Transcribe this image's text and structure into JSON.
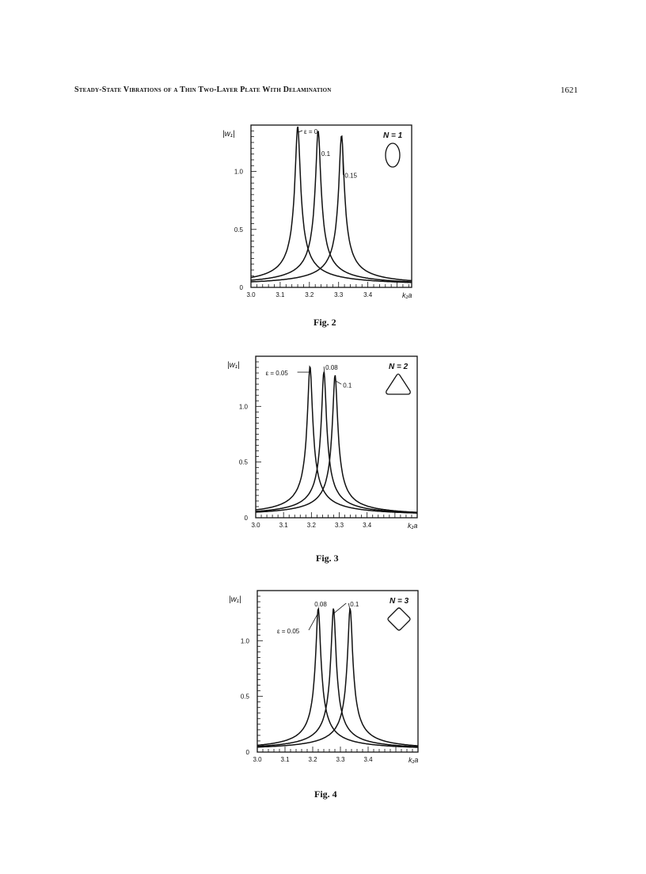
{
  "header": {
    "running_title": "Steady-State Vibrations of a Thin Two-Layer Plate With Delamination",
    "page_number": "1621"
  },
  "chart_data": [
    {
      "type": "line",
      "caption": "Fig. 2",
      "ylabel": "|w₁|",
      "xlabel": "k₁a",
      "xlim": [
        3.0,
        3.55
      ],
      "ylim": [
        0,
        1.4
      ],
      "x_ticks": [
        "3.0",
        "3.1",
        "3.2",
        "3.3",
        "3.4"
      ],
      "y_ticks": [
        "0",
        "0.5",
        "1.0"
      ],
      "corner_label": "N = 1",
      "shape_icon": "ellipse",
      "series": [
        {
          "name": "ε = 0",
          "peak_x": 3.16,
          "peak_y": 1.38,
          "width": 0.0085
        },
        {
          "name": "0.1",
          "peak_x": 3.23,
          "peak_y": 1.34,
          "width": 0.0085
        },
        {
          "name": "0.15",
          "peak_x": 3.31,
          "peak_y": 1.3,
          "width": 0.0085
        }
      ]
    },
    {
      "type": "line",
      "caption": "Fig. 3",
      "ylabel": "|w₁|",
      "xlabel": "k₁a",
      "xlim": [
        3.0,
        3.58
      ],
      "ylim": [
        0,
        1.45
      ],
      "x_ticks": [
        "3.0",
        "3.1",
        "3.2",
        "3.3",
        "3.4"
      ],
      "y_ticks": [
        "0",
        "0.5",
        "1.0"
      ],
      "corner_label": "N = 2",
      "shape_icon": "rounded-triangle",
      "series": [
        {
          "name": "ε = 0.05",
          "peak_x": 3.195,
          "peak_y": 1.35,
          "width": 0.0085
        },
        {
          "name": "0.08",
          "peak_x": 3.245,
          "peak_y": 1.3,
          "width": 0.0085
        },
        {
          "name": "0.1",
          "peak_x": 3.285,
          "peak_y": 1.27,
          "width": 0.0085
        }
      ]
    },
    {
      "type": "line",
      "caption": "Fig. 4",
      "ylabel": "|w₁|",
      "xlabel": "k₁a",
      "xlim": [
        3.0,
        3.58
      ],
      "ylim": [
        0,
        1.45
      ],
      "x_ticks": [
        "3.0",
        "3.1",
        "3.2",
        "3.3",
        "3.4"
      ],
      "y_ticks": [
        "0",
        "0.5",
        "1.0"
      ],
      "corner_label": "N = 3",
      "shape_icon": "rounded-diamond",
      "series": [
        {
          "name": "ε = 0.05",
          "peak_x": 3.22,
          "peak_y": 1.28,
          "width": 0.0085
        },
        {
          "name": "0.08",
          "peak_x": 3.275,
          "peak_y": 1.28,
          "width": 0.0085
        },
        {
          "name": "0.1",
          "peak_x": 3.335,
          "peak_y": 1.28,
          "width": 0.0085
        }
      ]
    }
  ]
}
